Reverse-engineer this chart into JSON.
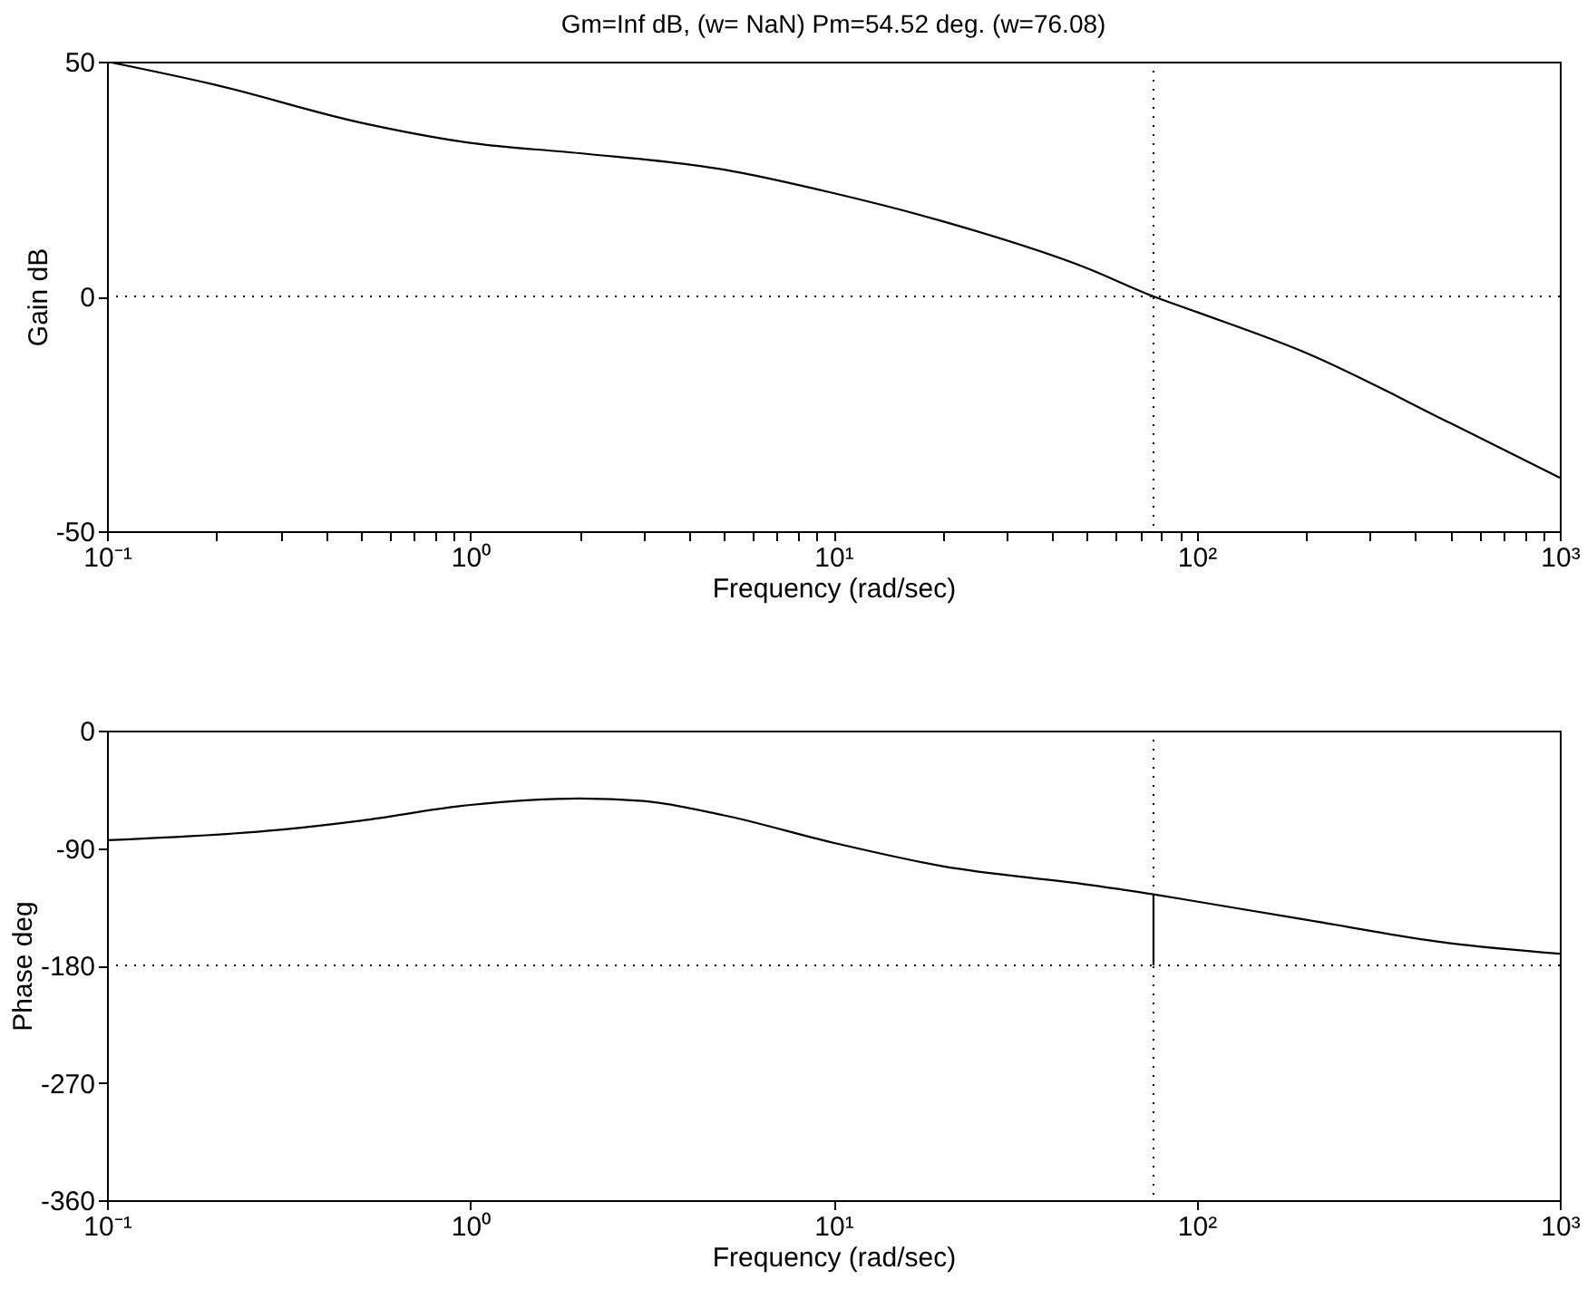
{
  "chart_data": [
    {
      "type": "line",
      "title": "Gm=Inf dB, (w= NaN)    Pm=54.52 deg. (w=76.08)",
      "xlabel": "Frequency (rad/sec)",
      "ylabel": "Gain dB",
      "log": "x",
      "xlim": [
        0.1,
        1000
      ],
      "ylim": [
        -50,
        50
      ],
      "yticks": [
        -50,
        0,
        50
      ],
      "xticks": [
        {
          "value": 0.1,
          "label": "10⁻¹"
        },
        {
          "value": 0.2,
          "label": null
        },
        {
          "value": 0.3,
          "label": null
        },
        {
          "value": 0.4,
          "label": null
        },
        {
          "value": 0.5,
          "label": null
        },
        {
          "value": 0.6,
          "label": null
        },
        {
          "value": 0.7,
          "label": null
        },
        {
          "value": 0.8,
          "label": null
        },
        {
          "value": 0.9,
          "label": null
        },
        {
          "value": 1,
          "label": "10⁰"
        },
        {
          "value": 2,
          "label": null
        },
        {
          "value": 3,
          "label": null
        },
        {
          "value": 4,
          "label": null
        },
        {
          "value": 5,
          "label": null
        },
        {
          "value": 6,
          "label": null
        },
        {
          "value": 7,
          "label": null
        },
        {
          "value": 8,
          "label": null
        },
        {
          "value": 9,
          "label": null
        },
        {
          "value": 10,
          "label": "10¹"
        },
        {
          "value": 20,
          "label": null
        },
        {
          "value": 30,
          "label": null
        },
        {
          "value": 40,
          "label": null
        },
        {
          "value": 50,
          "label": null
        },
        {
          "value": 60,
          "label": null
        },
        {
          "value": 70,
          "label": null
        },
        {
          "value": 80,
          "label": null
        },
        {
          "value": 90,
          "label": null
        },
        {
          "value": 100,
          "label": "10²"
        },
        {
          "value": 200,
          "label": null
        },
        {
          "value": 300,
          "label": null
        },
        {
          "value": 400,
          "label": null
        },
        {
          "value": 500,
          "label": null
        },
        {
          "value": 600,
          "label": null
        },
        {
          "value": 700,
          "label": null
        },
        {
          "value": 800,
          "label": null
        },
        {
          "value": 900,
          "label": null
        },
        {
          "value": 1000,
          "label": "10³"
        }
      ],
      "x": [
        0.1,
        0.2,
        0.5,
        1,
        2,
        5,
        10,
        20,
        50,
        76.08,
        100,
        200,
        500,
        1000
      ],
      "series": [
        {
          "color": "#000000",
          "values": [
            50,
            45,
            37,
            32.7,
            30.5,
            27,
            22,
            16,
            6,
            0,
            -3.3,
            -12,
            -27,
            -38.6
          ]
        }
      ],
      "ref_lines": [
        {
          "axis": "y",
          "value": 0,
          "color": "#000000",
          "line_style": "dotted"
        },
        {
          "axis": "x",
          "value": 76.08,
          "color": "#000000",
          "line_style": "dotted"
        }
      ]
    },
    {
      "type": "line",
      "xlabel": "Frequency (rad/sec)",
      "ylabel": "Phase deg",
      "log": "x",
      "xlim": [
        0.1,
        1000
      ],
      "ylim": [
        -360,
        0
      ],
      "yticks": [
        -360,
        -270,
        -180,
        -90,
        0
      ],
      "xticks": [
        {
          "value": 0.1,
          "label": "10⁻¹"
        },
        {
          "value": 1,
          "label": "10⁰"
        },
        {
          "value": 10,
          "label": "10¹"
        },
        {
          "value": 100,
          "label": "10²"
        },
        {
          "value": 1000,
          "label": "10³"
        }
      ],
      "x": [
        0.1,
        0.3,
        0.5,
        1,
        2,
        3,
        5,
        10,
        20,
        50,
        76.08,
        100,
        200,
        500,
        1000
      ],
      "series": [
        {
          "color": "#000000",
          "values": [
            -84,
            -76,
            -69,
            -57,
            -52,
            -54,
            -65,
            -86,
            -104,
            -118,
            -125.48,
            -131,
            -145,
            -163,
            -171
          ]
        },
        {
          "color": "#000000",
          "x": [
            76.08,
            76.08
          ],
          "values": [
            -180,
            -125.48
          ]
        }
      ],
      "ref_lines": [
        {
          "axis": "y",
          "value": -180,
          "color": "#000000",
          "line_style": "dotted"
        },
        {
          "axis": "x",
          "value": 76.08,
          "color": "#000000",
          "line_style": "dotted"
        }
      ]
    }
  ]
}
